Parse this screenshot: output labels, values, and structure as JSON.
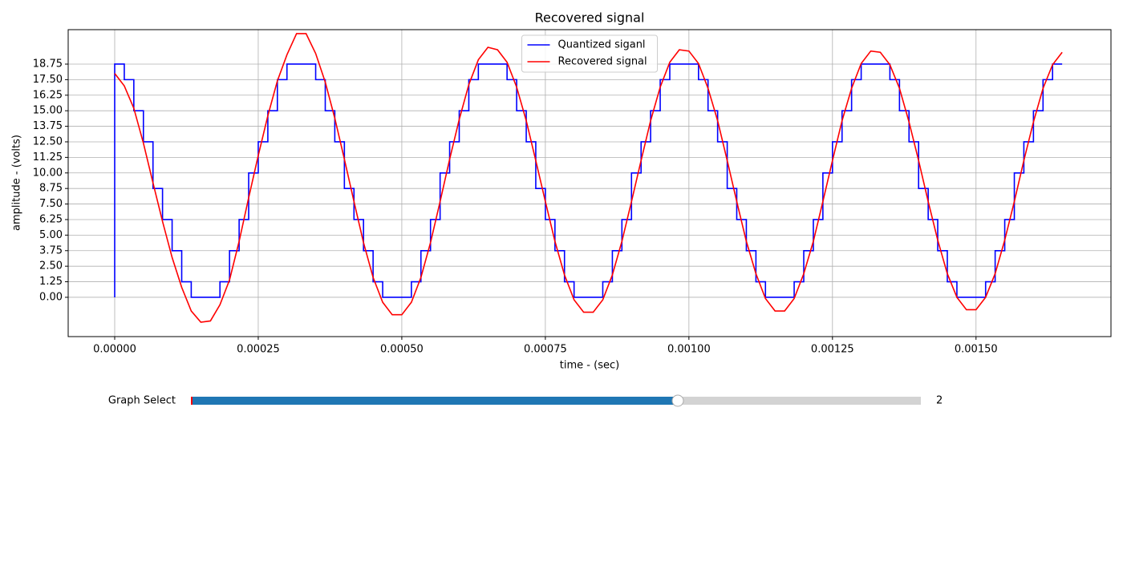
{
  "chart_data": {
    "type": "line",
    "title": "Recovered signal",
    "xlabel": "time - (sec)",
    "ylabel": "amplitude - (volts)",
    "x": [
      0,
      1.67e-05,
      3.33e-05,
      5e-05,
      6.67e-05,
      8.33e-05,
      0.0001,
      0.0001167,
      0.0001333,
      0.00015,
      0.0001667,
      0.0001833,
      0.0002,
      0.0002167,
      0.0002333,
      0.00025,
      0.0002667,
      0.0002833,
      0.0003,
      0.0003167,
      0.0003333,
      0.00035,
      0.0003667,
      0.0003833,
      0.0004,
      0.0004167,
      0.0004333,
      0.00045,
      0.0004667,
      0.0004833,
      0.0005,
      0.0005167,
      0.0005333,
      0.00055,
      0.0005667,
      0.0005833,
      0.0006,
      0.0006167,
      0.0006333,
      0.00065,
      0.0006667,
      0.0006833,
      0.0007,
      0.0007167,
      0.0007333,
      0.00075,
      0.0007667,
      0.0007833,
      0.0008,
      0.0008167,
      0.0008333,
      0.00085,
      0.0008667,
      0.0008833,
      0.0009,
      0.0009167,
      0.0009333,
      0.00095,
      0.0009667,
      0.0009833,
      0.001,
      0.0010167,
      0.0010333,
      0.00105,
      0.0010667,
      0.0010833,
      0.0011,
      0.0011167,
      0.0011333,
      0.00115,
      0.0011667,
      0.0011833,
      0.0012,
      0.0012167,
      0.0012333,
      0.00125,
      0.0012667,
      0.0012833,
      0.0013,
      0.0013167,
      0.0013333,
      0.00135,
      0.0013667,
      0.0013833,
      0.0014,
      0.0014167,
      0.0014333,
      0.00145,
      0.0014667,
      0.0014833,
      0.0015,
      0.0015167,
      0.0015333,
      0.00155,
      0.0015667,
      0.0015833,
      0.0016,
      0.0016167,
      0.0016333,
      0.00165
    ],
    "series": [
      {
        "name": "Quantized siganl",
        "color": "#0000ff",
        "drawstyle": "steps-pre",
        "values": [
          0,
          18.75,
          17.5,
          15,
          12.5,
          8.75,
          6.25,
          3.75,
          1.25,
          0,
          0,
          0,
          1.25,
          3.75,
          6.25,
          10,
          12.5,
          15,
          17.5,
          18.75,
          18.75,
          18.75,
          17.5,
          15,
          12.5,
          8.75,
          6.25,
          3.75,
          1.25,
          0,
          0,
          0,
          1.25,
          3.75,
          6.25,
          10,
          12.5,
          15,
          17.5,
          18.75,
          18.75,
          18.75,
          17.5,
          15,
          12.5,
          8.75,
          6.25,
          3.75,
          1.25,
          0,
          0,
          0,
          1.25,
          3.75,
          6.25,
          10,
          12.5,
          15,
          17.5,
          18.75,
          18.75,
          18.75,
          17.5,
          15,
          12.5,
          8.75,
          6.25,
          3.75,
          1.25,
          0,
          0,
          0,
          1.25,
          3.75,
          6.25,
          10,
          12.5,
          15,
          17.5,
          18.75,
          18.75,
          18.75,
          17.5,
          15,
          12.5,
          8.75,
          6.25,
          3.75,
          1.25,
          0,
          0,
          0,
          1.25,
          3.75,
          6.25,
          10,
          12.5,
          15,
          17.5,
          18.75
        ]
      },
      {
        "name": "Recovered signal",
        "color": "#ff0000",
        "drawstyle": "default",
        "values": [
          18.0,
          17.0,
          15.2,
          12.4,
          9.2,
          6.1,
          3.2,
          0.8,
          -1.1,
          -2.0,
          -1.9,
          -0.6,
          1.4,
          4.5,
          8.0,
          11.4,
          14.6,
          17.4,
          19.5,
          21.2,
          21.2,
          19.6,
          17.3,
          14.4,
          11.1,
          7.7,
          4.4,
          1.6,
          -0.4,
          -1.4,
          -1.4,
          -0.4,
          1.6,
          4.4,
          7.7,
          11.1,
          14.3,
          17.1,
          19.1,
          20.1,
          19.9,
          18.9,
          16.9,
          14.2,
          11.0,
          7.7,
          4.5,
          1.8,
          -0.2,
          -1.2,
          -1.2,
          -0.2,
          1.8,
          4.5,
          7.7,
          11.0,
          14.2,
          16.9,
          18.9,
          19.9,
          19.8,
          18.8,
          16.8,
          14.2,
          11.0,
          7.7,
          4.5,
          1.9,
          -0.1,
          -1.1,
          -1.1,
          -0.1,
          1.9,
          4.5,
          7.7,
          11.0,
          14.2,
          16.8,
          18.8,
          19.8,
          19.7,
          18.7,
          16.8,
          14.1,
          11.0,
          7.7,
          4.6,
          1.9,
          0.0,
          -1.0,
          -1.0,
          0.0,
          1.9,
          4.6,
          7.7,
          11.0,
          14.1,
          16.8,
          18.7,
          19.7
        ]
      }
    ],
    "xlim": [
      -8.1e-05,
      0.001735
    ],
    "ylim": [
      -3.16,
      21.52
    ],
    "xticks": [
      {
        "value": 0,
        "label": "0.00000"
      },
      {
        "value": 0.00025,
        "label": "0.00025"
      },
      {
        "value": 0.0005,
        "label": "0.00050"
      },
      {
        "value": 0.00075,
        "label": "0.00075"
      },
      {
        "value": 0.001,
        "label": "0.00100"
      },
      {
        "value": 0.00125,
        "label": "0.00125"
      },
      {
        "value": 0.0015,
        "label": "0.00150"
      }
    ],
    "yticks": [
      {
        "value": 0,
        "label": "0.00"
      },
      {
        "value": 1.25,
        "label": "1.25"
      },
      {
        "value": 2.5,
        "label": "2.50"
      },
      {
        "value": 3.75,
        "label": "3.75"
      },
      {
        "value": 5,
        "label": "5.00"
      },
      {
        "value": 6.25,
        "label": "6.25"
      },
      {
        "value": 7.5,
        "label": "7.50"
      },
      {
        "value": 8.75,
        "label": "8.75"
      },
      {
        "value": 10,
        "label": "10.00"
      },
      {
        "value": 11.25,
        "label": "11.25"
      },
      {
        "value": 12.5,
        "label": "12.50"
      },
      {
        "value": 13.75,
        "label": "13.75"
      },
      {
        "value": 15,
        "label": "15.00"
      },
      {
        "value": 16.25,
        "label": "16.25"
      },
      {
        "value": 17.5,
        "label": "17.50"
      },
      {
        "value": 18.75,
        "label": "18.75"
      }
    ],
    "grid": true,
    "legend": "upper-center"
  },
  "slider": {
    "label": "Graph Select",
    "min": 0,
    "max": 3,
    "valinit": 0,
    "value": 2,
    "color": "#1f77b4"
  }
}
